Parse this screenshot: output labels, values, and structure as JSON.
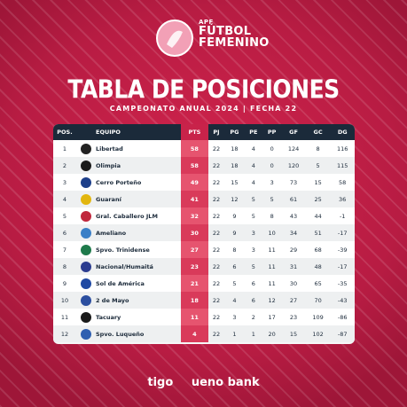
{
  "brand": {
    "apf": "APF",
    "line1": "FÚTBOL",
    "line2": "FEMENINO"
  },
  "title": "TABLA DE POSICIONES",
  "subtitle": "CAMPEONATO ANUAL 2024 | FECHA 22",
  "columns": [
    "POS.",
    "EQUIPO",
    "PTS",
    "PJ",
    "PG",
    "PE",
    "PP",
    "GF",
    "GC",
    "DG"
  ],
  "colors": {
    "accent": "#c8234a",
    "header_dark": "#1b2a3a",
    "pts_cell": "#e6546f"
  },
  "rows": [
    {
      "pos": "1",
      "team": "Libertad",
      "crest_color": "#222222",
      "pts": "58",
      "pj": "22",
      "pg": "18",
      "pe": "4",
      "pp": "0",
      "gf": "124",
      "gc": "8",
      "dg": "116"
    },
    {
      "pos": "2",
      "team": "Olimpia",
      "crest_color": "#1a1a1a",
      "pts": "58",
      "pj": "22",
      "pg": "18",
      "pe": "4",
      "pp": "0",
      "gf": "120",
      "gc": "5",
      "dg": "115"
    },
    {
      "pos": "3",
      "team": "Cerro Porteño",
      "crest_color": "#1d3f8a",
      "pts": "49",
      "pj": "22",
      "pg": "15",
      "pe": "4",
      "pp": "3",
      "gf": "73",
      "gc": "15",
      "dg": "58"
    },
    {
      "pos": "4",
      "team": "Guaraní",
      "crest_color": "#e2b60f",
      "pts": "41",
      "pj": "22",
      "pg": "12",
      "pe": "5",
      "pp": "5",
      "gf": "61",
      "gc": "25",
      "dg": "36"
    },
    {
      "pos": "5",
      "team": "Gral. Caballero JLM",
      "crest_color": "#c0283d",
      "pts": "32",
      "pj": "22",
      "pg": "9",
      "pe": "5",
      "pp": "8",
      "gf": "43",
      "gc": "44",
      "dg": "-1"
    },
    {
      "pos": "6",
      "team": "Ameliano",
      "crest_color": "#3a7fc7",
      "pts": "30",
      "pj": "22",
      "pg": "9",
      "pe": "3",
      "pp": "10",
      "gf": "34",
      "gc": "51",
      "dg": "-17"
    },
    {
      "pos": "7",
      "team": "Spvo. Trinidense",
      "crest_color": "#1e7a4b",
      "pts": "27",
      "pj": "22",
      "pg": "8",
      "pe": "3",
      "pp": "11",
      "gf": "29",
      "gc": "68",
      "dg": "-39"
    },
    {
      "pos": "8",
      "team": "Nacional/Humaitá",
      "crest_color": "#2b3c8f",
      "pts": "23",
      "pj": "22",
      "pg": "6",
      "pe": "5",
      "pp": "11",
      "gf": "31",
      "gc": "48",
      "dg": "-17"
    },
    {
      "pos": "9",
      "team": "Sol de América",
      "crest_color": "#1f49a3",
      "pts": "21",
      "pj": "22",
      "pg": "5",
      "pe": "6",
      "pp": "11",
      "gf": "30",
      "gc": "65",
      "dg": "-35"
    },
    {
      "pos": "10",
      "team": "2 de Mayo",
      "crest_color": "#2c4fa0",
      "pts": "18",
      "pj": "22",
      "pg": "4",
      "pe": "6",
      "pp": "12",
      "gf": "27",
      "gc": "70",
      "dg": "-43"
    },
    {
      "pos": "11",
      "team": "Tacuary",
      "crest_color": "#1a1a1a",
      "pts": "11",
      "pj": "22",
      "pg": "3",
      "pe": "2",
      "pp": "17",
      "gf": "23",
      "gc": "109",
      "dg": "-86"
    },
    {
      "pos": "12",
      "team": "Spvo. Luqueño",
      "crest_color": "#2f5fb0",
      "pts": "4",
      "pj": "22",
      "pg": "1",
      "pe": "1",
      "pp": "20",
      "gf": "15",
      "gc": "102",
      "dg": "-87"
    }
  ],
  "sponsors": [
    "tigo",
    "ueno bank"
  ]
}
